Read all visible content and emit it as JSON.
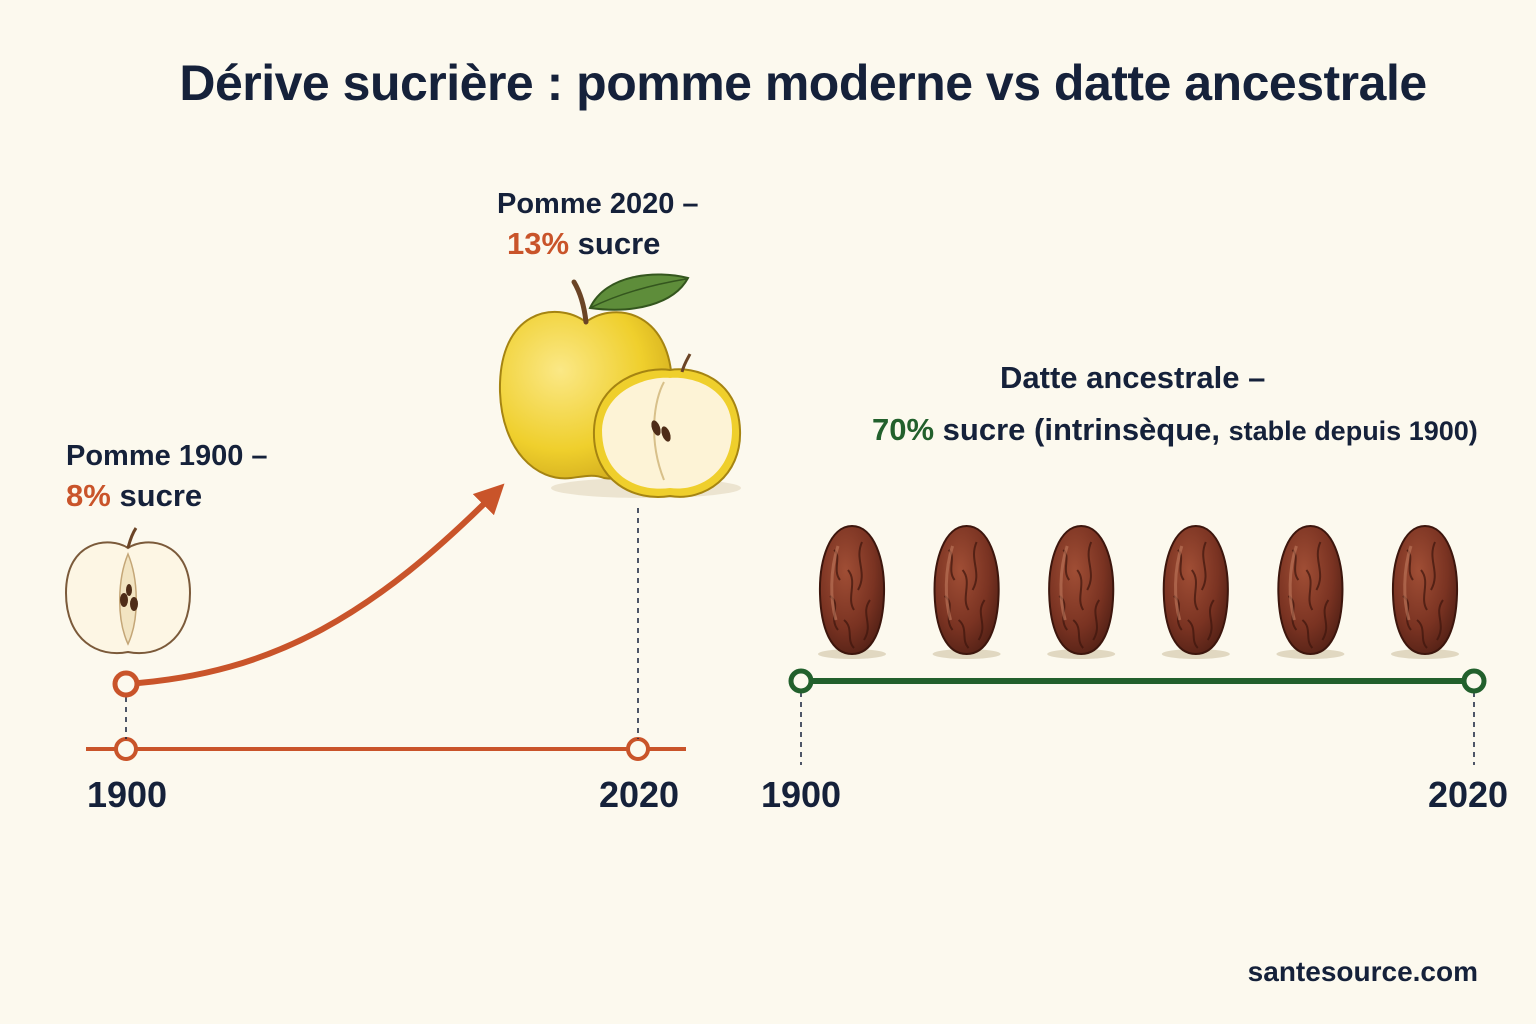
{
  "title": "Dérive sucrière : pomme moderne vs datte ancestrale",
  "source": "santesource.com",
  "colors": {
    "apple_series": "#c9542a",
    "date_series": "#22602c",
    "text": "#15213a",
    "background": "#fcf9ee"
  },
  "chart_data": [
    {
      "type": "line",
      "x": [
        1900,
        2020
      ],
      "series": [
        {
          "values": [
            8,
            13
          ],
          "labels": [
            {
              "name": "Pomme 1900 –",
              "pct": "8%",
              "unit": "sucre"
            },
            {
              "name": "Pomme 2020 –",
              "pct": "13%",
              "unit": "sucre"
            }
          ]
        }
      ],
      "tick_labels": [
        "1900",
        "2020"
      ],
      "icons": [
        "half-apple-icon",
        "yellow-apple-icon"
      ]
    },
    {
      "type": "line",
      "x": [
        1900,
        2020
      ],
      "series": [
        {
          "values": [
            70,
            70
          ],
          "label": {
            "name": "Datte ancestrale –",
            "pct": "70%",
            "unit": "sucre (intrinsèque,",
            "note": "stable depuis 1900)"
          }
        }
      ],
      "tick_labels": [
        "1900",
        "2020"
      ],
      "icons": [
        "date-fruit-icon"
      ],
      "date_count": 6
    }
  ]
}
